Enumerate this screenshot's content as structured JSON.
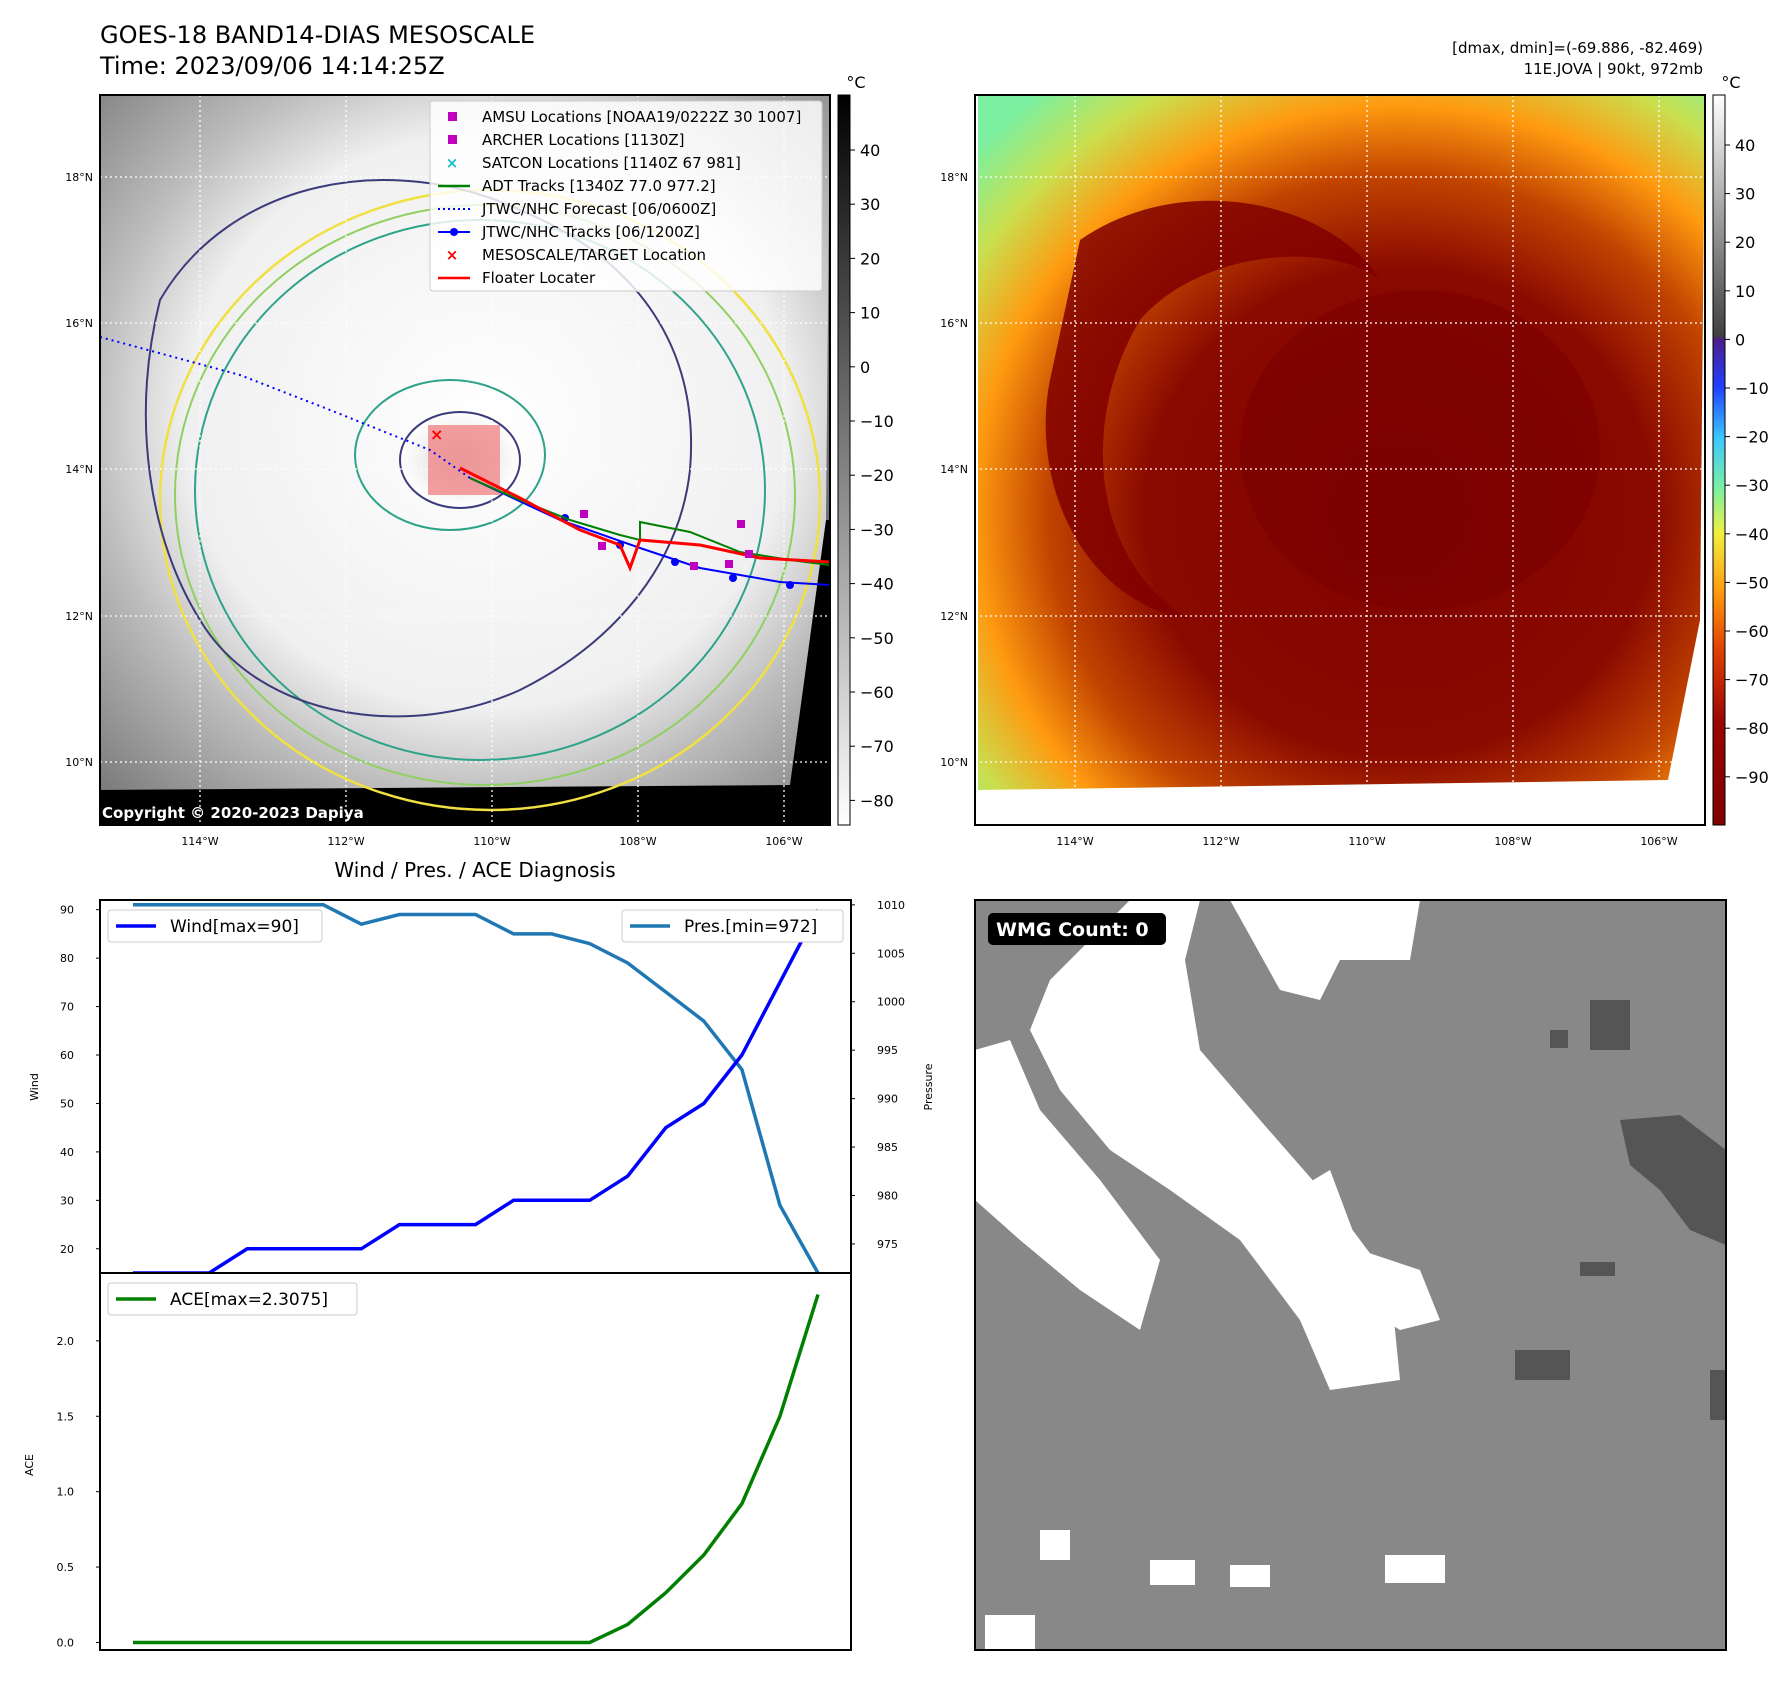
{
  "header": {
    "title_line1": "GOES-18 BAND14-DIAS MESOSCALE",
    "title_line2": "Time: 2023/09/06 14:14:25Z",
    "right_line1": "[dmax, dmin]=(-69.886, -82.469)",
    "right_line2": "11E.JOVA | 90kt, 972mb"
  },
  "colors": {
    "wind": "#0000ff",
    "pressure": "#1f77b4",
    "ace": "#008000",
    "target_box": "#f08080",
    "eye_red": "#ff0000"
  },
  "map_left": {
    "lat_labels": [
      "18°N",
      "16°N",
      "14°N",
      "12°N",
      "10°N"
    ],
    "lon_labels": [
      "114°W",
      "112°W",
      "110°W",
      "108°W",
      "106°W"
    ],
    "copyright": "Copyright © 2020-2023 Dapiya",
    "colorbar_unit": "°C",
    "colorbar_ticks": [
      "40",
      "30",
      "20",
      "10",
      "0",
      "−10",
      "−20",
      "−30",
      "−40",
      "−50",
      "−60",
      "−70",
      "−80"
    ],
    "legend": [
      {
        "label": "AMSU Locations [NOAA19/0222Z 30 1007]",
        "marker": "square",
        "color": "#bf00bf"
      },
      {
        "label": "ARCHER Locations [1130Z]",
        "marker": "square",
        "color": "#bf00bf"
      },
      {
        "label": "SATCON Locations [1140Z 67 981]",
        "marker": "x",
        "color": "#17becf"
      },
      {
        "label": "ADT Tracks [1340Z 77.0 977.2]",
        "marker": "line",
        "color": "#008000"
      },
      {
        "label": "JTWC/NHC Forecast [06/0600Z]",
        "marker": "dotted",
        "color": "#0000ff"
      },
      {
        "label": "JTWC/NHC Tracks [06/1200Z]",
        "marker": "line-dot",
        "color": "#0000ff"
      },
      {
        "label": "MESOSCALE/TARGET Location",
        "marker": "x",
        "color": "#ff0000"
      },
      {
        "label": "Floater Locater",
        "marker": "line",
        "color": "#ff0000"
      }
    ]
  },
  "map_right": {
    "lat_labels": [
      "18°N",
      "16°N",
      "14°N",
      "12°N",
      "10°N"
    ],
    "lon_labels": [
      "114°W",
      "112°W",
      "110°W",
      "108°W",
      "106°W"
    ],
    "colorbar_unit": "°C",
    "colorbar_ticks": [
      "40",
      "30",
      "20",
      "10",
      "0",
      "−10",
      "−20",
      "−30",
      "−40",
      "−50",
      "−60",
      "−70",
      "−80",
      "−90"
    ]
  },
  "wmg_panel": {
    "label": "WMG Count: 0"
  },
  "chart_data": [
    {
      "type": "line",
      "title": "Wind / Pres. / ACE Diagnosis",
      "ylabel": "Wind",
      "y2label": "Pressure",
      "ylim": [
        15,
        92
      ],
      "y2lim": [
        972,
        1010.5
      ],
      "yticks": [
        "20",
        "30",
        "40",
        "50",
        "60",
        "70",
        "80",
        "90"
      ],
      "y2ticks": [
        "975",
        "980",
        "985",
        "990",
        "995",
        "1000",
        "1005",
        "1010"
      ],
      "series": [
        {
          "name": "Wind[max=90]",
          "values": [
            15,
            15,
            15,
            20,
            20,
            20,
            20,
            25,
            25,
            25,
            30,
            30,
            30,
            35,
            45,
            50,
            60,
            75,
            90
          ]
        },
        {
          "name": "Pres.[min=972]",
          "values": [
            1010,
            1010,
            1010,
            1010,
            1010,
            1010,
            1008,
            1009,
            1009,
            1009,
            1007,
            1007,
            1006,
            1004,
            1001,
            998,
            993,
            979,
            972
          ]
        }
      ]
    },
    {
      "type": "line",
      "ylabel": "ACE",
      "ylim": [
        -0.05,
        2.45
      ],
      "yticks": [
        "0.0",
        "0.5",
        "1.0",
        "1.5",
        "2.0"
      ],
      "series": [
        {
          "name": "ACE[max=2.3075]",
          "values": [
            0,
            0,
            0,
            0,
            0,
            0,
            0,
            0,
            0,
            0,
            0,
            0,
            0,
            0.12,
            0.33,
            0.58,
            0.92,
            1.5,
            2.3075
          ]
        }
      ]
    }
  ]
}
